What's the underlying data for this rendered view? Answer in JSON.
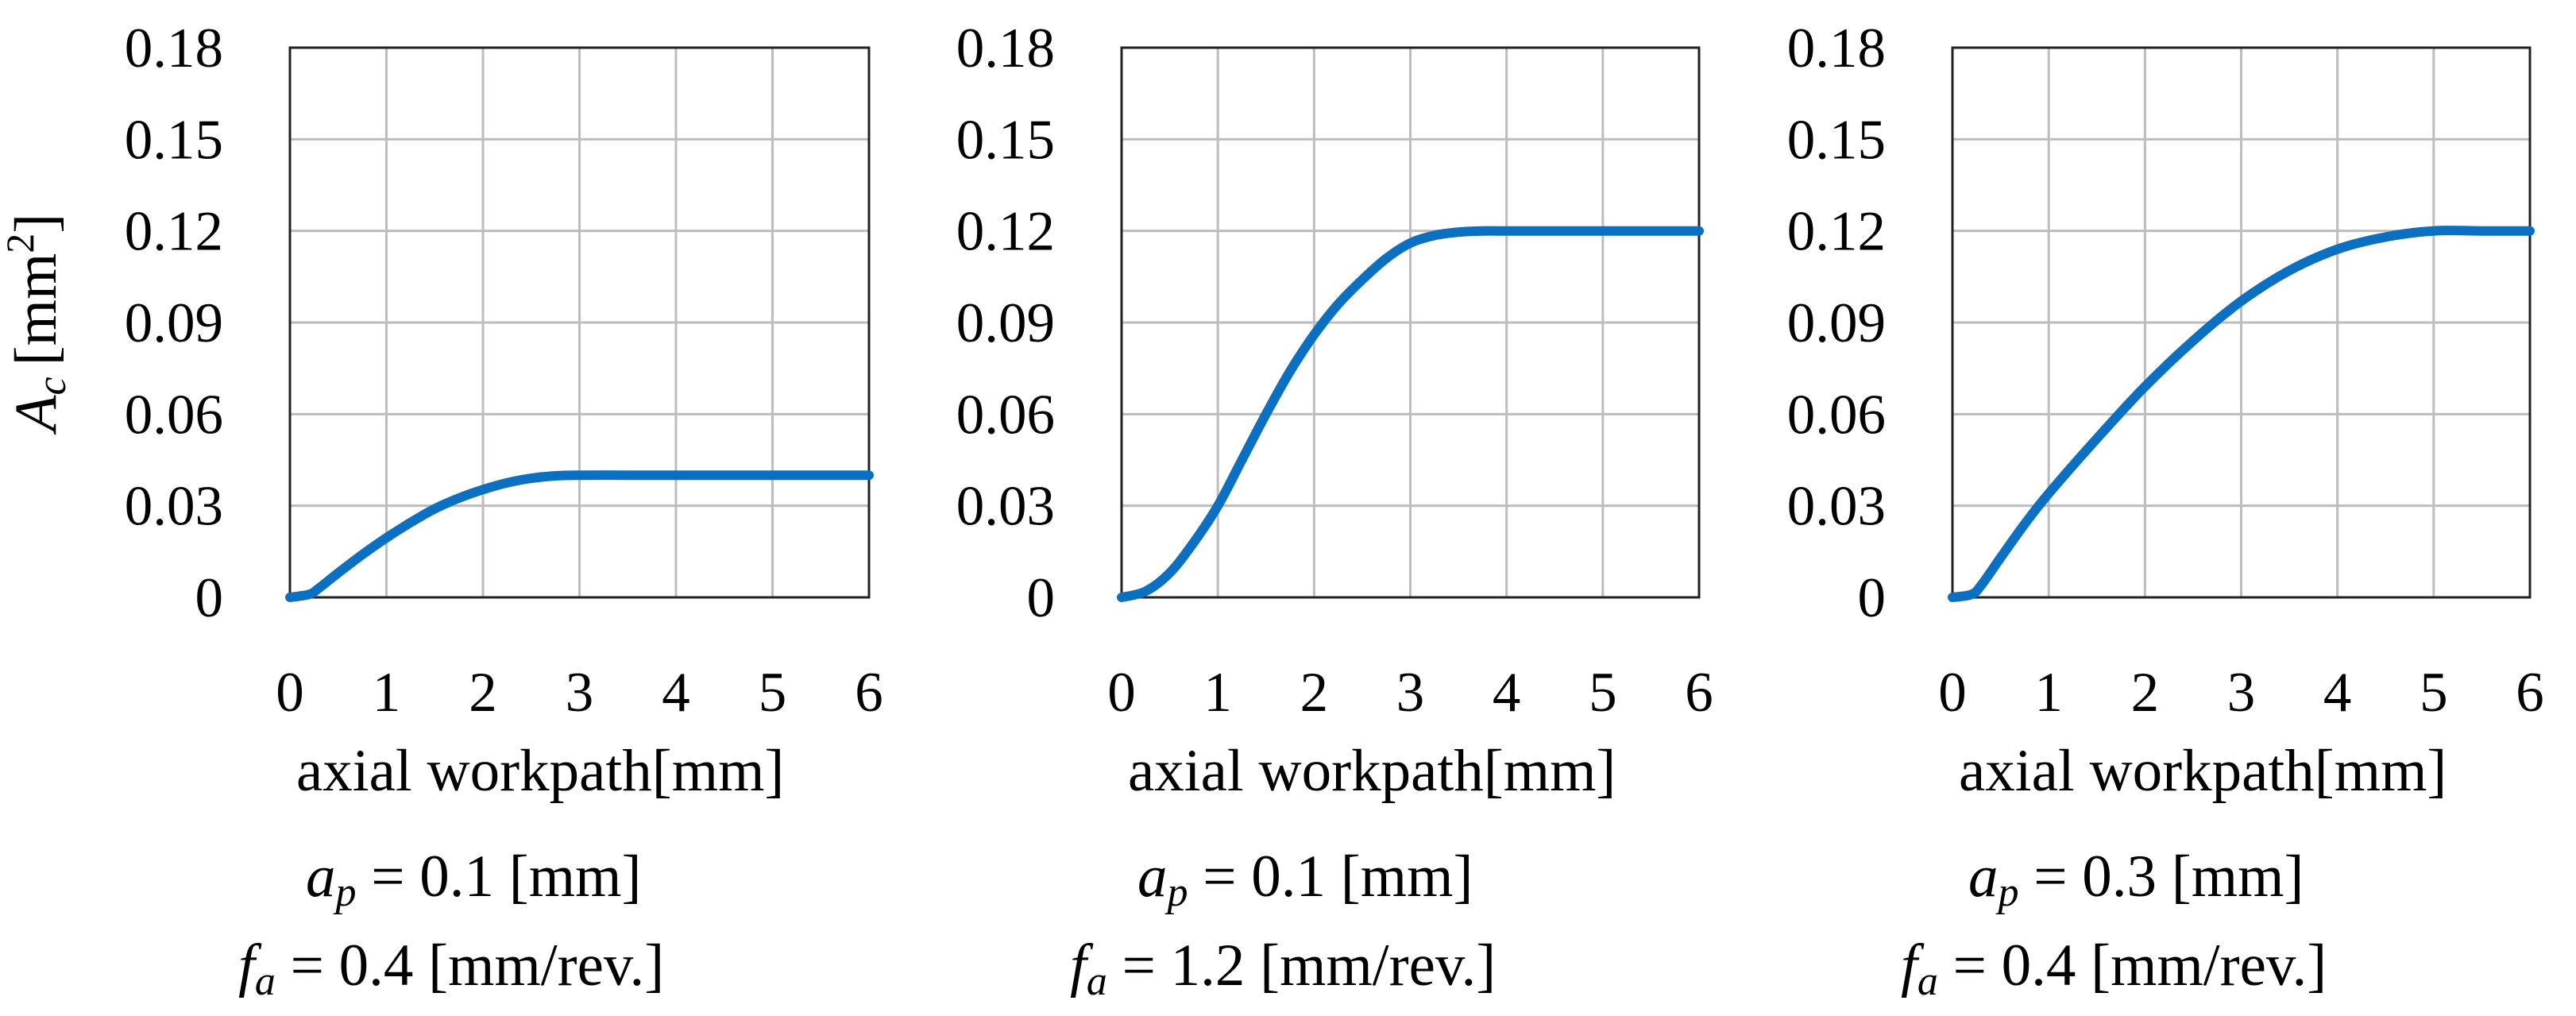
{
  "chart_data": [
    {
      "type": "line",
      "xlabel": "axial workpath[mm]",
      "ylabel": {
        "symbol": "A",
        "subscript": "c",
        "unit": "[mm",
        "superscript": "2",
        "close": "]"
      },
      "xlim": [
        0,
        6
      ],
      "ylim": [
        0,
        0.18
      ],
      "x_ticks": [
        "0",
        "1",
        "2",
        "3",
        "4",
        "5",
        "6"
      ],
      "y_ticks": [
        "0",
        "0.03",
        "0.06",
        "0.09",
        "0.12",
        "0.15",
        "0.18"
      ],
      "grid": true,
      "series": [
        {
          "color": "#0b70c1",
          "x": [
            0,
            0.2,
            0.3,
            0.5,
            0.75,
            1,
            1.25,
            1.5,
            1.75,
            2,
            2.25,
            2.5,
            2.75,
            3,
            3.5,
            4,
            5,
            6
          ],
          "y": [
            0,
            0.001,
            0.003,
            0.008,
            0.014,
            0.0195,
            0.0245,
            0.029,
            0.0325,
            0.0353,
            0.0375,
            0.039,
            0.0398,
            0.04,
            0.04,
            0.04,
            0.04,
            0.04
          ]
        }
      ],
      "caption": {
        "line1": {
          "symbol": "a",
          "subscript": "p",
          "text": " = 0.1 [mm]"
        },
        "line2": {
          "symbol": "f",
          "subscript": "a",
          "text": " = 0.4 [mm/rev.]"
        }
      }
    },
    {
      "type": "line",
      "xlabel": "axial workpath[mm]",
      "xlim": [
        0,
        6
      ],
      "ylim": [
        0,
        0.18
      ],
      "x_ticks": [
        "0",
        "1",
        "2",
        "3",
        "4",
        "5",
        "6"
      ],
      "y_ticks": [
        "0",
        "0.03",
        "0.06",
        "0.09",
        "0.12",
        "0.15",
        "0.18"
      ],
      "grid": true,
      "series": [
        {
          "color": "#0b70c1",
          "x": [
            0,
            0.25,
            0.5,
            0.75,
            1,
            1.25,
            1.5,
            1.75,
            2,
            2.25,
            2.5,
            2.75,
            3,
            3.25,
            3.5,
            3.75,
            4,
            5,
            6
          ],
          "y": [
            0,
            0.002,
            0.008,
            0.018,
            0.03,
            0.045,
            0.06,
            0.074,
            0.086,
            0.096,
            0.104,
            0.111,
            0.116,
            0.1185,
            0.1196,
            0.12,
            0.12,
            0.12,
            0.12
          ]
        }
      ],
      "caption": {
        "line1": {
          "symbol": "a",
          "subscript": "p",
          "text": " = 0.1 [mm]"
        },
        "line2": {
          "symbol": "f",
          "subscript": "a",
          "text": " = 1.2 [mm/rev.]"
        }
      }
    },
    {
      "type": "line",
      "xlabel": "axial workpath[mm]",
      "xlim": [
        0,
        6
      ],
      "ylim": [
        0,
        0.18
      ],
      "x_ticks": [
        "0",
        "1",
        "2",
        "3",
        "4",
        "5",
        "6"
      ],
      "y_ticks": [
        "0",
        "0.03",
        "0.06",
        "0.09",
        "0.12",
        "0.15",
        "0.18"
      ],
      "grid": true,
      "series": [
        {
          "color": "#0b70c1",
          "x": [
            0,
            0.2,
            0.3,
            0.5,
            0.75,
            1,
            1.5,
            2,
            2.5,
            3,
            3.5,
            4,
            4.5,
            5,
            5.5,
            6
          ],
          "y": [
            0,
            0.001,
            0.004,
            0.013,
            0.024,
            0.034,
            0.052,
            0.069,
            0.084,
            0.097,
            0.107,
            0.114,
            0.118,
            0.12,
            0.12,
            0.12
          ]
        }
      ],
      "caption": {
        "line1": {
          "symbol": "a",
          "subscript": "p",
          "text": " = 0.3 [mm]"
        },
        "line2": {
          "symbol": "f",
          "subscript": "a",
          "text": " = 0.4 [mm/rev.]"
        }
      }
    }
  ]
}
